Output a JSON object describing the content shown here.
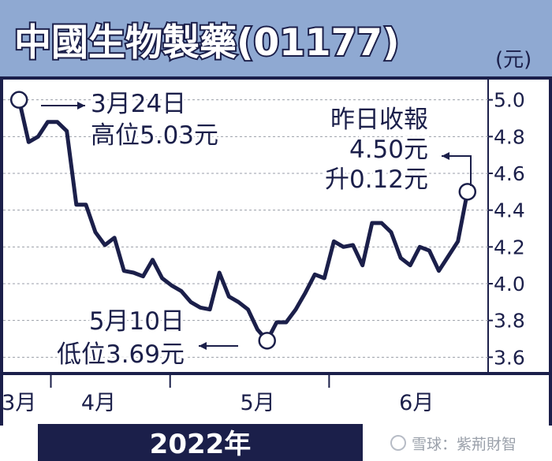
{
  "chart_data": {
    "type": "line",
    "title": "中國生物製藥(01177)",
    "unit_label": "(元)",
    "year_label": "2022年",
    "watermark": "雪球：紫荊財智",
    "y_ticks": [
      "5.0",
      "4.8",
      "4.6",
      "4.4",
      "4.2",
      "4.0",
      "3.8",
      "3.6"
    ],
    "y_tick_values": [
      5.0,
      4.8,
      4.6,
      4.4,
      4.2,
      4.0,
      3.8,
      3.6
    ],
    "ylim": [
      3.52,
      5.11
    ],
    "x_month_labels": [
      "3月",
      "4月",
      "5月",
      "6月"
    ],
    "x_month_centers": [
      0,
      5,
      15,
      25
    ],
    "x_month_boundaries": [
      2,
      9.5,
      19.5
    ],
    "xlim": [
      -1,
      29.5
    ],
    "grid": true,
    "series": [
      {
        "color": "#1b1f4a",
        "x": [
          0,
          0.6,
          1.2,
          1.8,
          2.4,
          3,
          3.6,
          4.2,
          4.8,
          5.4,
          6,
          6.6,
          7.2,
          7.8,
          8.4,
          9,
          9.6,
          10.2,
          10.8,
          11.4,
          12,
          12.6,
          13.2,
          13.8,
          14.4,
          15,
          15.6,
          16.2,
          16.8,
          17.4,
          18,
          18.6,
          19.2,
          19.8,
          20.4,
          21,
          21.6,
          22.2,
          22.8,
          23.4,
          24,
          24.6,
          25.2,
          25.8,
          26.4,
          27,
          27.6,
          28.2
        ],
        "y": [
          5.0,
          4.77,
          4.8,
          4.88,
          4.88,
          4.83,
          4.43,
          4.43,
          4.28,
          4.21,
          4.25,
          4.07,
          4.06,
          4.04,
          4.13,
          4.03,
          3.99,
          3.96,
          3.9,
          3.87,
          3.86,
          4.06,
          3.93,
          3.9,
          3.86,
          3.75,
          3.69,
          3.79,
          3.79,
          3.86,
          3.95,
          4.05,
          4.03,
          4.23,
          4.2,
          4.21,
          4.1,
          4.33,
          4.33,
          4.28,
          4.14,
          4.1,
          4.2,
          4.18,
          4.07,
          4.15,
          4.23,
          4.5
        ]
      }
    ],
    "annotations": [
      {
        "lines": [
          "3月24日",
          "高位5.03元"
        ],
        "x": 0,
        "y": 5.0
      },
      {
        "lines": [
          "5月10日",
          "低位3.69元"
        ],
        "x": 15.6,
        "y": 3.69
      },
      {
        "lines": [
          "昨日收報",
          "4.50元",
          "升0.12元"
        ],
        "x": 28.2,
        "y": 4.5
      }
    ]
  }
}
